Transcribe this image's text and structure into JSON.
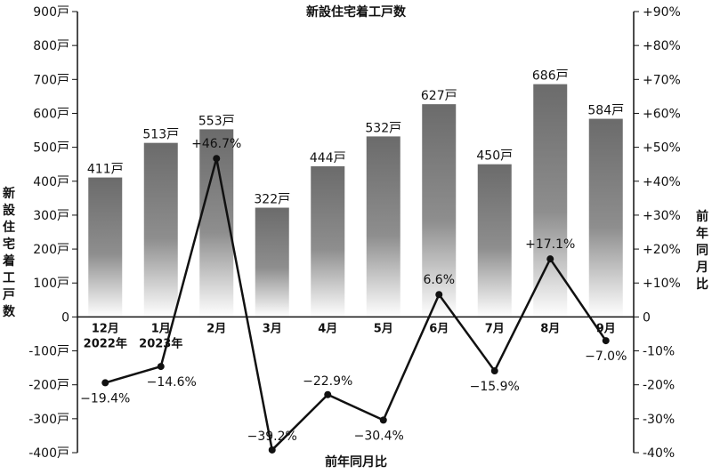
{
  "chart_data": {
    "type": "bar+line",
    "title": "新設住宅着工戸数",
    "bottom_title": "前年同月比",
    "left_axis_label": "新設住宅着工戸数",
    "right_axis_label": "前年同月比",
    "categories": [
      "12月",
      "1月",
      "2月",
      "3月",
      "4月",
      "5月",
      "6月",
      "7月",
      "8月",
      "9月"
    ],
    "category_years": [
      "2022年",
      "2023年",
      "",
      "",
      "",
      "",
      "",
      "",
      "",
      ""
    ],
    "bars": {
      "values": [
        411,
        513,
        553,
        322,
        444,
        532,
        627,
        450,
        686,
        584
      ],
      "labels": [
        "411戸",
        "513戸",
        "553戸",
        "322戸",
        "444戸",
        "532戸",
        "627戸",
        "450戸",
        "686戸",
        "584戸"
      ]
    },
    "line": {
      "values": [
        -19.4,
        -14.6,
        46.7,
        -39.2,
        -22.9,
        -30.4,
        6.6,
        -15.9,
        17.1,
        -7.0
      ],
      "labels": [
        "−19.4%",
        "−14.6%",
        "+46.7%",
        "−39.2%",
        "−22.9%",
        "−30.4%",
        "6.6%",
        "−15.9%",
        "+17.1%",
        "−7.0%"
      ]
    },
    "left_axis": {
      "range": [
        -400,
        900
      ],
      "ticks": [
        900,
        800,
        700,
        600,
        500,
        400,
        300,
        200,
        100,
        0,
        -100,
        -200,
        -300,
        -400
      ],
      "tick_labels": [
        "900戸",
        "800戸",
        "700戸",
        "600戸",
        "500戸",
        "400戸",
        "300戸",
        "200戸",
        "100戸",
        "0",
        "-100戸",
        "-200戸",
        "-300戸",
        "-400戸"
      ]
    },
    "right_axis": {
      "range": [
        -40,
        90
      ],
      "ticks": [
        90,
        80,
        70,
        60,
        50,
        40,
        30,
        20,
        10,
        0,
        -10,
        -20,
        -30,
        -40
      ],
      "tick_labels": [
        "+90%",
        "+80%",
        "+70%",
        "+60%",
        "+50%",
        "+40%",
        "+30%",
        "+20%",
        "+10%",
        "0",
        "-10%",
        "-20%",
        "-30%",
        "-40%"
      ]
    },
    "colors": {
      "bar_top": "#6b6b6b",
      "bar_bottom": "#ffffff",
      "line": "#111111"
    },
    "grid": false
  }
}
